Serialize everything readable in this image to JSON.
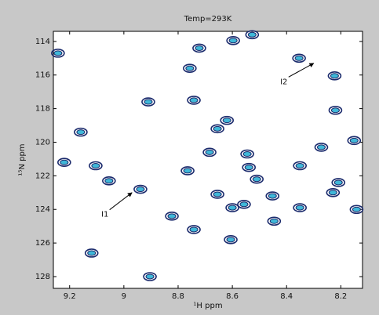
{
  "chart_data": {
    "type": "scatter",
    "title": "Temp=293K",
    "x_label": "¹H ppm",
    "y_label": "¹⁵N ppm",
    "xlim": [
      9.26,
      8.12
    ],
    "ylim": [
      113.4,
      128.7
    ],
    "xticks": [
      9.2,
      9,
      8.8,
      8.6,
      8.4,
      8.2
    ],
    "yticks": [
      114,
      116,
      118,
      120,
      122,
      124,
      126,
      128
    ],
    "y_inverted": true,
    "series": [
      {
        "color": "#1a2a6c",
        "inner_color": "#3fb8d8",
        "x": [
          9.243,
          8.527,
          8.597,
          8.722,
          8.354,
          8.757,
          8.223,
          8.91,
          8.742,
          8.22,
          9.159,
          8.62,
          8.655,
          8.151,
          8.272,
          8.684,
          8.545,
          9.22,
          9.104,
          8.765,
          8.351,
          8.539,
          9.055,
          8.51,
          8.209,
          8.939,
          8.655,
          8.452,
          8.229,
          8.6,
          8.557,
          8.351,
          8.142,
          8.823,
          8.446,
          8.742,
          8.606,
          9.119,
          8.904
        ],
        "values": [
          114.7,
          113.6,
          113.95,
          114.4,
          115.0,
          115.6,
          116.05,
          117.6,
          117.5,
          118.1,
          119.4,
          118.7,
          119.2,
          119.9,
          120.3,
          120.6,
          120.7,
          121.2,
          121.4,
          121.7,
          121.4,
          121.5,
          122.3,
          122.2,
          122.4,
          122.8,
          123.1,
          123.2,
          123.0,
          123.9,
          123.7,
          123.9,
          124.0,
          124.4,
          124.7,
          125.2,
          125.8,
          126.6,
          128.0
        ]
      }
    ],
    "annotations": [
      {
        "text": "I2",
        "x": 8.41,
        "y": 116.4,
        "arrow_x": 8.3,
        "arrow_y": 115.3
      },
      {
        "text": "I1",
        "x": 9.07,
        "y": 124.3,
        "arrow_x": 8.97,
        "arrow_y": 123.0
      }
    ]
  }
}
